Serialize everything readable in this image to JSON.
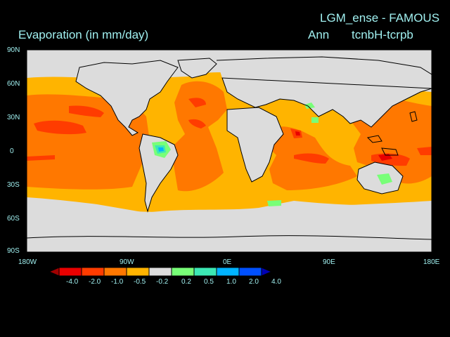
{
  "title": {
    "model": "LGM_ense - FAMOUS",
    "variable": "Evaporation (in mm/day)",
    "period": "Ann",
    "experiment": "tcnbH-tcrpb"
  },
  "axes": {
    "lat_labels": [
      "90N",
      "60N",
      "30N",
      "0",
      "30S",
      "60S",
      "90S"
    ],
    "lon_labels": [
      "180W",
      "90W",
      "0E",
      "90E",
      "180E"
    ]
  },
  "legend": {
    "labels": [
      "-4.0",
      "-2.0",
      "-1.0",
      "-0.5",
      "-0.2",
      "0.2",
      "0.5",
      "1.0",
      "2.0",
      "4.0"
    ],
    "colors": [
      "#a00000",
      "#e80000",
      "#ff3c00",
      "#ff7800",
      "#ffb400",
      "#dcdcdc",
      "#78ff78",
      "#3ce8b4",
      "#00b4ff",
      "#0050ff",
      "#0000b4"
    ]
  }
}
